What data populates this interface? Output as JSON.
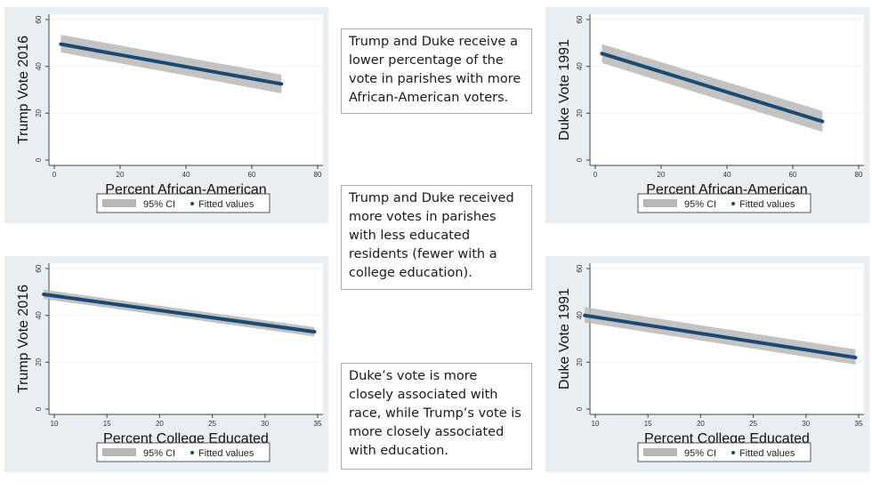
{
  "notes": [
    {
      "text": "Trump and Duke receive a lower percentage of the vote in parishes with more African-American voters."
    },
    {
      "text": "Trump and Duke received more votes in parishes with less educated residents (fewer with a college education)."
    },
    {
      "text": "Duke’s vote is more closely associated with race, while Trump’s vote is more closely associated with education."
    }
  ],
  "colors": {
    "panel_bg": "#e9eef2",
    "plot_bg": "#ffffff",
    "fitted_line": "#1a4a73",
    "ci_band": "#b8b8b8",
    "grid": "#eef2f4"
  },
  "chart_data": [
    {
      "type": "line",
      "title": "",
      "xlabel": "Percent African-American",
      "ylabel": "Trump Vote 2016",
      "xlim": [
        0,
        80
      ],
      "ylim": [
        0,
        60
      ],
      "xticks": [
        0,
        20,
        40,
        60,
        80
      ],
      "yticks": [
        0,
        20,
        40,
        60
      ],
      "grid": true,
      "legend": {
        "position": "bottom",
        "entries": [
          "95% CI",
          "Fitted values"
        ]
      },
      "series": [
        {
          "name": "Fitted values",
          "x": [
            2,
            69
          ],
          "y": [
            49.5,
            32.5
          ]
        },
        {
          "name": "95% CI",
          "x": [
            2,
            69
          ],
          "lower": [
            46,
            28.5
          ],
          "upper": [
            53.5,
            36.5
          ]
        }
      ]
    },
    {
      "type": "line",
      "title": "",
      "xlabel": "Percent African-American",
      "ylabel": "Duke Vote 1991",
      "xlim": [
        0,
        80
      ],
      "ylim": [
        0,
        60
      ],
      "xticks": [
        0,
        20,
        40,
        60,
        80
      ],
      "yticks": [
        0,
        20,
        40,
        60
      ],
      "grid": true,
      "legend": {
        "position": "bottom",
        "entries": [
          "95% CI",
          "Fitted values"
        ]
      },
      "series": [
        {
          "name": "Fitted values",
          "x": [
            2,
            69
          ],
          "y": [
            45.5,
            16.5
          ]
        },
        {
          "name": "95% CI",
          "x": [
            2,
            69
          ],
          "lower": [
            41.5,
            12
          ],
          "upper": [
            49.5,
            21
          ]
        }
      ]
    },
    {
      "type": "line",
      "title": "",
      "xlabel": "Percent College Educated",
      "ylabel": "Trump Vote 2016",
      "xlim": [
        8.5,
        35.5
      ],
      "ylim": [
        0,
        60
      ],
      "xticks": [
        10,
        15,
        20,
        25,
        30,
        35
      ],
      "yticks": [
        0,
        20,
        40,
        60
      ],
      "grid": true,
      "legend": {
        "position": "bottom",
        "entries": [
          "95% CI",
          "Fitted values"
        ]
      },
      "series": [
        {
          "name": "Fitted values",
          "x": [
            9,
            34.7
          ],
          "y": [
            49,
            33
          ]
        },
        {
          "name": "95% CI",
          "x": [
            9,
            34.7
          ],
          "lower": [
            47,
            31
          ],
          "upper": [
            51,
            35
          ]
        }
      ]
    },
    {
      "type": "line",
      "title": "",
      "xlabel": "Percent College Educated",
      "ylabel": "Duke Vote 1991",
      "xlim": [
        8.5,
        35.5
      ],
      "ylim": [
        0,
        60
      ],
      "xticks": [
        10,
        15,
        20,
        25,
        30,
        35
      ],
      "yticks": [
        0,
        20,
        40,
        60
      ],
      "grid": true,
      "legend": {
        "position": "bottom",
        "entries": [
          "95% CI",
          "Fitted values"
        ]
      },
      "series": [
        {
          "name": "Fitted values",
          "x": [
            9,
            34.7
          ],
          "y": [
            40,
            22
          ]
        },
        {
          "name": "95% CI",
          "x": [
            9,
            34.7
          ],
          "lower": [
            37,
            19
          ],
          "upper": [
            43.5,
            25.5
          ]
        }
      ]
    }
  ]
}
